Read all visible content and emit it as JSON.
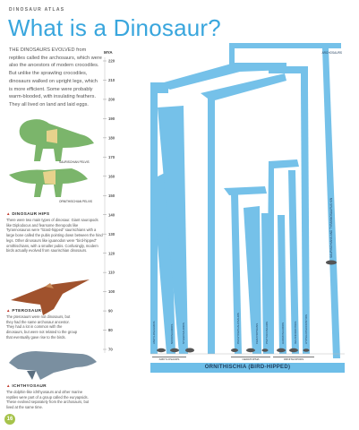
{
  "header": {
    "kicker": "DINOSAUR ATLAS",
    "title": "What is a Dinosaur?"
  },
  "intro": "THE DINOSAURS EVOLVED from reptiles called the archosaurs, which were also the ancestors of modern crocodiles. But unlike the sprawling crocodiles, dinosaurs walked on upright legs, which is more efficient. Some were probably warm-blooded, with insulating feathers. They all lived on land and laid eggs.",
  "illustrations": {
    "saurischian": "SAURISCHIAN PELVIS",
    "ornithischian": "ORNITHISCHIAN PELVIS"
  },
  "hips": {
    "heading": "DINOSAUR HIPS",
    "text": "There were two main types of dinosaur. Giant sauropods like Diplodocus and fearsome theropods like Tyrannosaurus were \"lizard-hipped\" saurischians with a large bone called the pubis pointing down between the hind legs. Other dinosaurs like iguanodon were \"bird-hipped\" ornithischians, with a smaller pubis. Confusingly, modern birds actually evolved from saurischian dinosaurs."
  },
  "pterosaur": {
    "heading": "PTEROSAUR",
    "text": "The pterosaurs were not dinosaurs, but they had the same archosaur ancestor. They had a lot in common with the dinosaurs, but were not related to the group that eventually gave rise to the birds."
  },
  "ichthyosaur": {
    "heading": "ICHTHYOSAUR",
    "text": "The dolphin-like ichthyosaurs and other marine reptiles were part of a group called the euryapsids. These evolved separately from the archosaurs, but lived at the same time."
  },
  "timeline": {
    "unit": "MYA",
    "ticks": [
      "220",
      "210",
      "200",
      "190",
      "180",
      "170",
      "160",
      "150",
      "140",
      "130",
      "120",
      "110",
      "100",
      "90",
      "80",
      "70"
    ]
  },
  "tree": {
    "top_label": "ARCHOSAURS",
    "rotated_label": "SAURISCHIANS AND TYRANNOSAURUS KIN",
    "clades": [
      "ANKYLOSAURIDS",
      "NODOSAURIDS",
      "STEGOSAURIDS",
      "PACHYCEPHALOSAURS",
      "CERATOPSIANS",
      "PSITTACOSAURS",
      "HADROSAURIDS",
      "IGUANODONTIDS",
      "HYPSILOPHODONTIDS"
    ],
    "groups": [
      "AMKYLOSAURS",
      "CERATOPSIA",
      "ORNITHOPODS"
    ],
    "main_group": "ORNITHISCHIA (BIRD-HIPPED)"
  },
  "page_number": "16",
  "colors": {
    "title": "#39a6dd",
    "branch": "#6ebee8",
    "dino_green": "#7bb56b",
    "pelvis": "#e7d28c",
    "accent": "#c0392b",
    "page_badge": "#a6c34b"
  }
}
